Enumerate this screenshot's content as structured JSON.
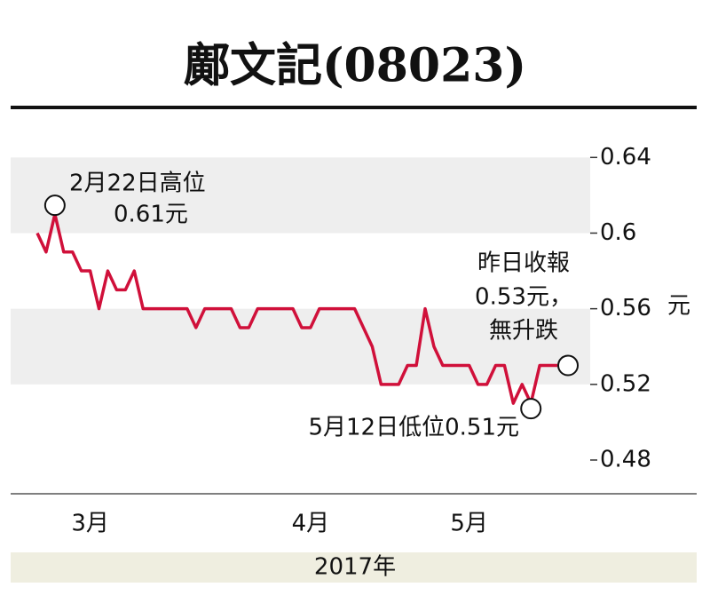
{
  "chart_data": {
    "type": "line",
    "title": "鄺文記(08023)",
    "y_unit": "元",
    "x_axis_label": "2017年",
    "x": [
      0,
      1,
      2,
      3,
      4,
      5,
      6,
      7,
      8,
      9,
      10,
      11,
      12,
      13,
      14,
      15,
      16,
      17,
      18,
      19,
      20,
      21,
      22,
      23,
      24,
      25,
      26,
      27,
      28,
      29,
      30,
      31,
      32,
      33,
      34,
      35,
      36,
      37,
      38,
      39,
      40,
      41,
      42,
      43,
      44,
      45,
      46,
      47,
      48,
      49,
      50,
      51,
      52,
      53,
      54,
      55,
      56,
      57,
      58,
      59
    ],
    "series": [
      {
        "color": "#d0103a",
        "values": [
          0.6,
          0.59,
          0.61,
          0.59,
          0.59,
          0.58,
          0.58,
          0.56,
          0.58,
          0.57,
          0.57,
          0.58,
          0.56,
          0.56,
          0.56,
          0.56,
          0.56,
          0.56,
          0.55,
          0.56,
          0.56,
          0.56,
          0.56,
          0.55,
          0.55,
          0.56,
          0.56,
          0.56,
          0.56,
          0.56,
          0.55,
          0.55,
          0.56,
          0.56,
          0.56,
          0.56,
          0.56,
          0.55,
          0.54,
          0.52,
          0.52,
          0.52,
          0.53,
          0.53,
          0.56,
          0.54,
          0.53,
          0.53,
          0.53,
          0.53,
          0.52,
          0.52,
          0.53,
          0.53,
          0.51,
          0.52,
          0.51,
          0.53,
          0.53,
          0.53
        ]
      }
    ],
    "xlim": [
      0,
      59
    ],
    "xticks": [
      {
        "value": 6,
        "label": "3月"
      },
      {
        "value": 31,
        "label": "4月"
      },
      {
        "value": 49,
        "label": "5月"
      }
    ],
    "ylim": [
      0.48,
      0.65
    ],
    "yticks": [
      0.48,
      0.52,
      0.56,
      0.6,
      0.64
    ],
    "bands": true,
    "annotations": [
      {
        "lines": [
          "2月22日高位",
          "0.61元"
        ],
        "point": 2
      },
      {
        "lines": [
          "昨日收報",
          "0.53元，",
          "無升跌"
        ],
        "point": 59
      },
      {
        "lines": [
          "5月12日低位0.51元"
        ],
        "point": 56
      }
    ]
  }
}
